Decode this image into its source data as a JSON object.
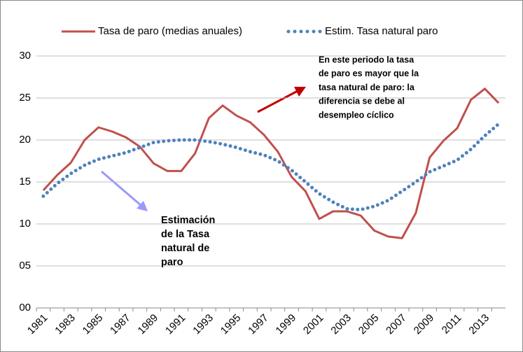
{
  "chart_data": {
    "type": "line",
    "categories": [
      "1981",
      null,
      "1983",
      null,
      "1985",
      null,
      "1987",
      null,
      "1989",
      null,
      "1991",
      null,
      "1993",
      null,
      "1995",
      null,
      "1997",
      null,
      "1999",
      null,
      "2001",
      null,
      "2003",
      null,
      "2005",
      null,
      "2007",
      null,
      "2009",
      null,
      "2011",
      null,
      "2013",
      null
    ],
    "series": [
      {
        "name": "Tasa de paro (medias anuales)",
        "color": "#c0504d",
        "style": "solid",
        "values": [
          14.0,
          15.8,
          17.3,
          20.0,
          21.5,
          21.0,
          20.3,
          19.2,
          17.2,
          16.3,
          16.3,
          18.4,
          22.6,
          24.1,
          22.9,
          22.1,
          20.6,
          18.6,
          15.6,
          13.9,
          10.6,
          11.5,
          11.5,
          11.0,
          9.2,
          8.5,
          8.3,
          11.3,
          17.9,
          19.9,
          21.4,
          24.8,
          26.1,
          24.4
        ]
      },
      {
        "name": "Estim. Tasa natural paro",
        "color": "#4f81bd",
        "style": "dotted",
        "values": [
          13.3,
          14.8,
          16.0,
          17.0,
          17.7,
          18.1,
          18.5,
          19.1,
          19.7,
          19.9,
          20.0,
          20.0,
          19.8,
          19.5,
          19.1,
          18.6,
          18.2,
          17.5,
          16.4,
          15.0,
          13.6,
          12.6,
          11.8,
          11.7,
          12.1,
          12.8,
          13.9,
          15.0,
          16.2,
          16.9,
          17.6,
          18.9,
          20.5,
          21.9
        ]
      }
    ],
    "ylim": [
      0,
      30
    ],
    "yticks": [
      {
        "value": 0,
        "label": "00"
      },
      {
        "value": 5,
        "label": "05"
      },
      10,
      15,
      20,
      25,
      30
    ],
    "grid": true,
    "legend": "top",
    "annotations": [
      {
        "lines": [
          "En este periodo la tasa",
          "de paro es mayor que la",
          "tasa natural de paro: la",
          "diferencia se debe al",
          "desempleo cíclico"
        ]
      },
      {
        "lines": [
          "Estimación",
          "de la Tasa",
          "natural de",
          "paro"
        ]
      }
    ]
  }
}
